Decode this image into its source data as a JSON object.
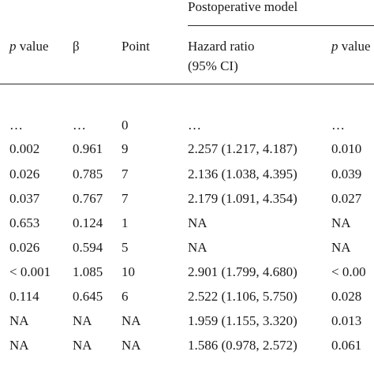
{
  "group_header": "Postoperative model",
  "columns": {
    "p_value_italic": "p",
    "p_value_rest": " value",
    "beta": "β",
    "point": "Point",
    "hazard_ratio_line1": "Hazard ratio",
    "hazard_ratio_line2": "(95% CI)",
    "p_value2_italic": "p",
    "p_value2_rest": " value"
  },
  "rows": [
    {
      "p": "…",
      "beta": "…",
      "point": "0",
      "hr": "…",
      "p2": "…"
    },
    {
      "p": "0.002",
      "beta": "0.961",
      "point": "9",
      "hr": "2.257 (1.217, 4.187)",
      "p2": "0.010"
    },
    {
      "p": "0.026",
      "beta": "0.785",
      "point": "7",
      "hr": "2.136 (1.038, 4.395)",
      "p2": "0.039"
    },
    {
      "p": "0.037",
      "beta": "0.767",
      "point": "7",
      "hr": "2.179 (1.091, 4.354)",
      "p2": "0.027"
    },
    {
      "p": "0.653",
      "beta": "0.124",
      "point": "1",
      "hr": "NA",
      "p2": "NA"
    },
    {
      "p": "0.026",
      "beta": "0.594",
      "point": "5",
      "hr": "NA",
      "p2": "NA"
    },
    {
      "p": "< 0.001",
      "beta": "1.085",
      "point": "10",
      "hr": "2.901 (1.799, 4.680)",
      "p2": "< 0.00"
    },
    {
      "p": "0.114",
      "beta": "0.645",
      "point": "6",
      "hr": "2.522 (1.106, 5.750)",
      "p2": "0.028"
    },
    {
      "p": "NA",
      "beta": "NA",
      "point": "NA",
      "hr": "1.959 (1.155, 3.320)",
      "p2": "0.013"
    },
    {
      "p": "NA",
      "beta": "NA",
      "point": "NA",
      "hr": "1.586 (0.978, 2.572)",
      "p2": "0.061"
    }
  ]
}
